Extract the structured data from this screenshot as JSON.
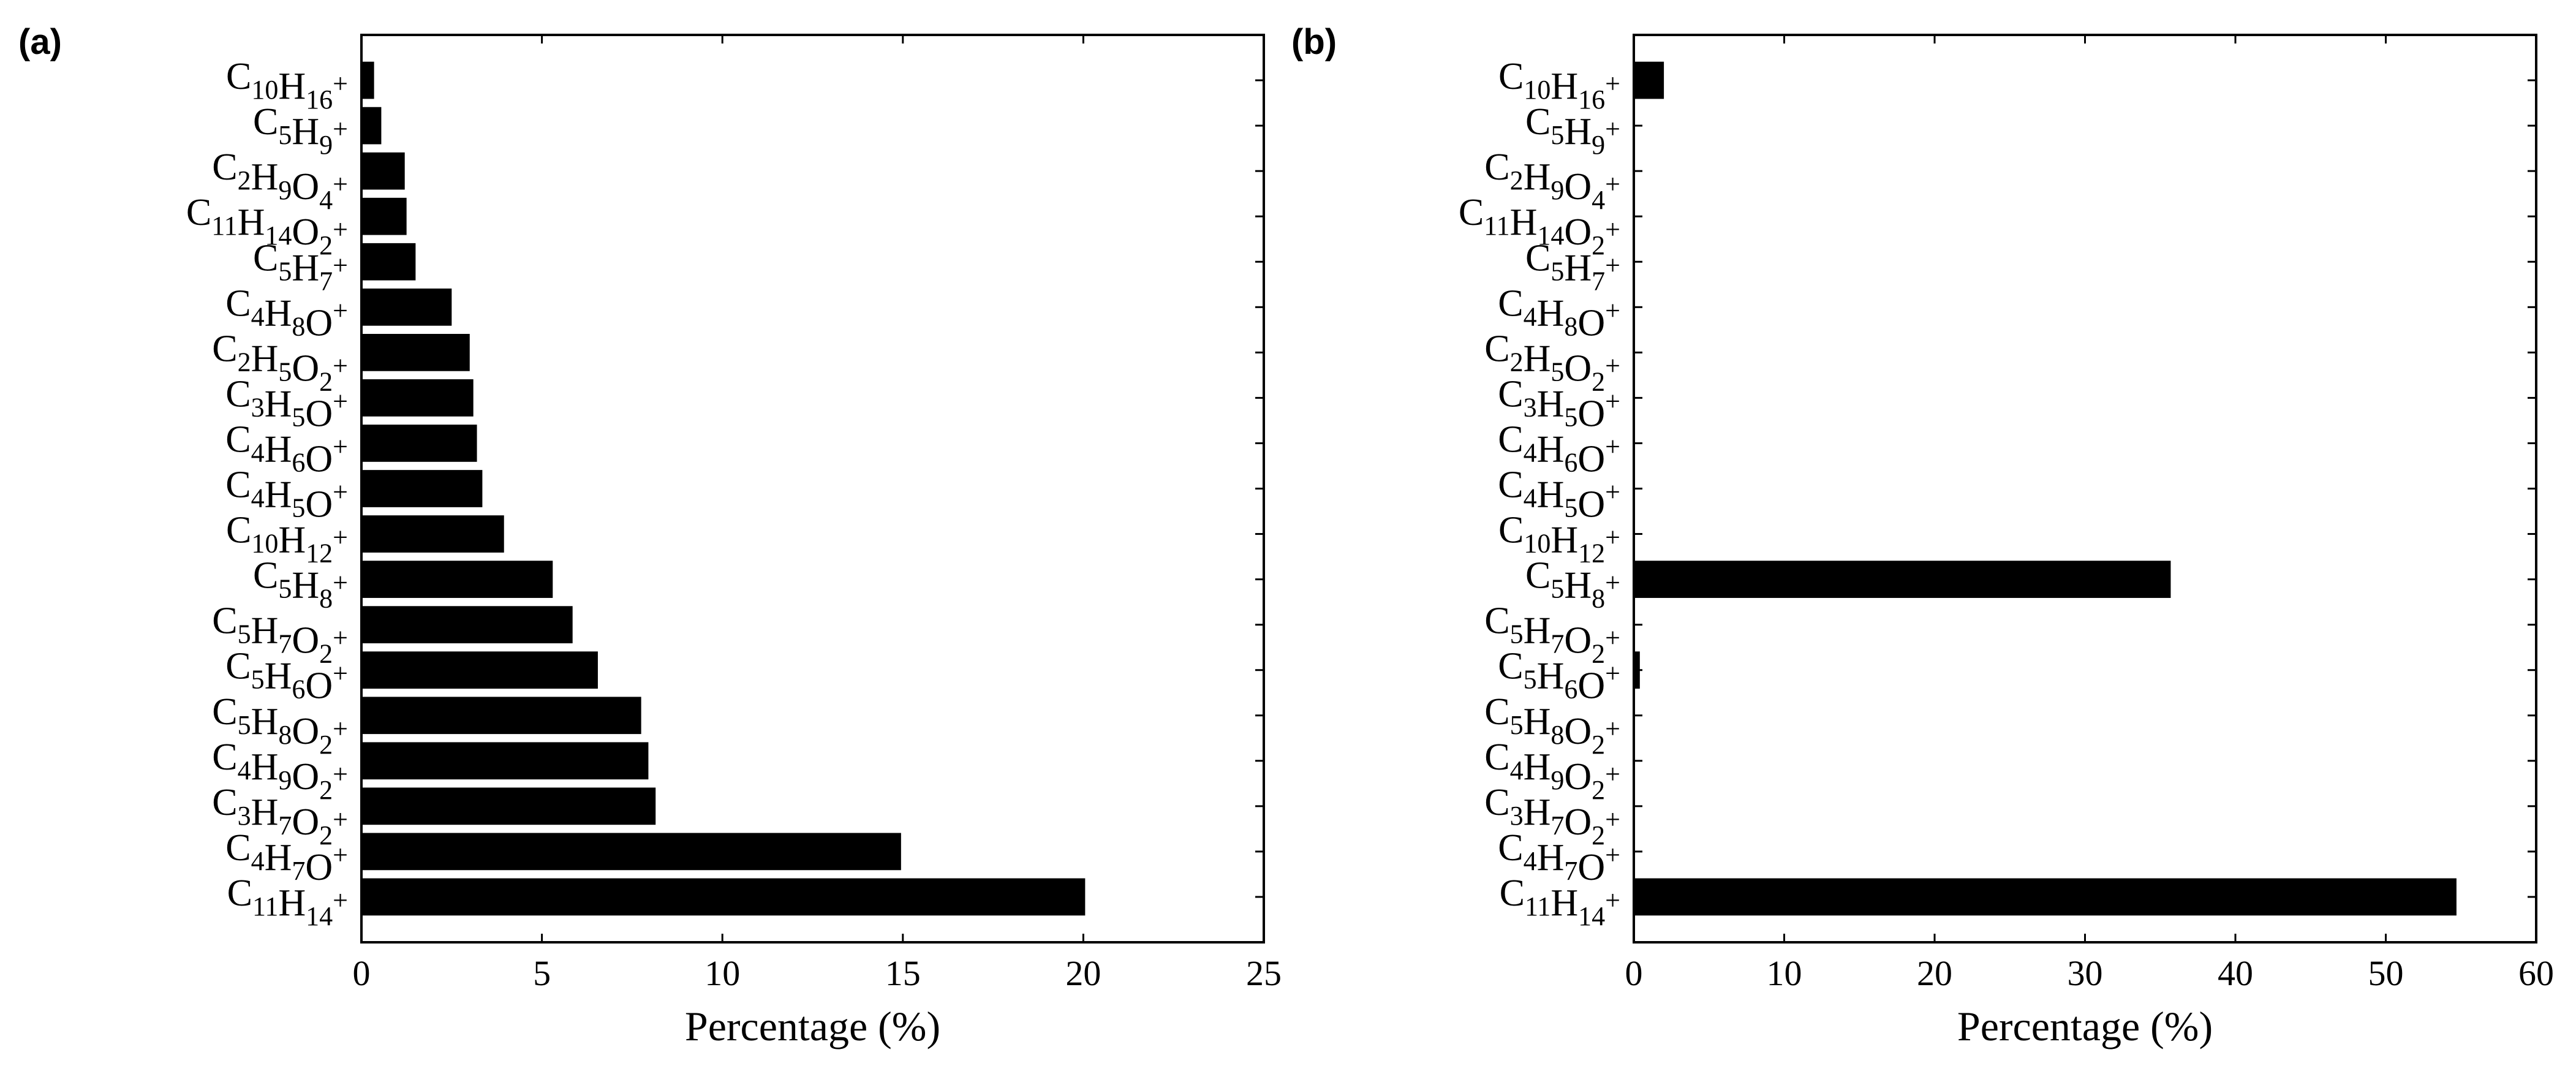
{
  "chart_data": [
    {
      "type": "bar",
      "orientation": "horizontal",
      "panel_label": "(a)",
      "xlabel": "Percentage (%)",
      "xlim": [
        0,
        25
      ],
      "xticks": [
        0,
        5,
        10,
        15,
        20,
        25
      ],
      "bar_color": "#000000",
      "categories": [
        {
          "base": "C",
          "parts": [
            {
              "t": "C",
              "s": "10"
            },
            {
              "t": "H",
              "s": "16"
            }
          ]
        },
        {
          "parts": [
            {
              "t": "C",
              "s": "5"
            },
            {
              "t": "H",
              "s": "9"
            }
          ]
        },
        {
          "parts": [
            {
              "t": "C",
              "s": "2"
            },
            {
              "t": "H",
              "s": "9"
            },
            {
              "t": "O",
              "s": "4"
            }
          ]
        },
        {
          "parts": [
            {
              "t": "C",
              "s": "11"
            },
            {
              "t": "H",
              "s": "14"
            },
            {
              "t": "O",
              "s": "2"
            }
          ]
        },
        {
          "parts": [
            {
              "t": "C",
              "s": "5"
            },
            {
              "t": "H",
              "s": "7"
            }
          ]
        },
        {
          "parts": [
            {
              "t": "C",
              "s": "4"
            },
            {
              "t": "H",
              "s": "8"
            },
            {
              "t": "O",
              "s": ""
            }
          ]
        },
        {
          "parts": [
            {
              "t": "C",
              "s": "2"
            },
            {
              "t": "H",
              "s": "5"
            },
            {
              "t": "O",
              "s": "2"
            }
          ]
        },
        {
          "parts": [
            {
              "t": "C",
              "s": "3"
            },
            {
              "t": "H",
              "s": "5"
            },
            {
              "t": "O",
              "s": ""
            }
          ]
        },
        {
          "parts": [
            {
              "t": "C",
              "s": "4"
            },
            {
              "t": "H",
              "s": "6"
            },
            {
              "t": "O",
              "s": ""
            }
          ]
        },
        {
          "parts": [
            {
              "t": "C",
              "s": "4"
            },
            {
              "t": "H",
              "s": "5"
            },
            {
              "t": "O",
              "s": ""
            }
          ]
        },
        {
          "parts": [
            {
              "t": "C",
              "s": "10"
            },
            {
              "t": "H",
              "s": "12"
            }
          ]
        },
        {
          "parts": [
            {
              "t": "C",
              "s": "5"
            },
            {
              "t": "H",
              "s": "8"
            }
          ]
        },
        {
          "parts": [
            {
              "t": "C",
              "s": "5"
            },
            {
              "t": "H",
              "s": "7"
            },
            {
              "t": "O",
              "s": "2"
            }
          ]
        },
        {
          "parts": [
            {
              "t": "C",
              "s": "5"
            },
            {
              "t": "H",
              "s": "6"
            },
            {
              "t": "O",
              "s": ""
            }
          ]
        },
        {
          "parts": [
            {
              "t": "C",
              "s": "5"
            },
            {
              "t": "H",
              "s": "8"
            },
            {
              "t": "O",
              "s": "2"
            }
          ]
        },
        {
          "parts": [
            {
              "t": "C",
              "s": "4"
            },
            {
              "t": "H",
              "s": "9"
            },
            {
              "t": "O",
              "s": "2"
            }
          ]
        },
        {
          "parts": [
            {
              "t": "C",
              "s": "3"
            },
            {
              "t": "H",
              "s": "7"
            },
            {
              "t": "O",
              "s": "2"
            }
          ]
        },
        {
          "parts": [
            {
              "t": "C",
              "s": "4"
            },
            {
              "t": "H",
              "s": "7"
            },
            {
              "t": "O",
              "s": ""
            }
          ]
        },
        {
          "parts": [
            {
              "t": "C",
              "s": "11"
            },
            {
              "t": "H",
              "s": "14"
            }
          ]
        }
      ],
      "values": [
        0.35,
        0.55,
        1.2,
        1.25,
        1.5,
        2.5,
        3.0,
        3.1,
        3.2,
        3.35,
        3.95,
        5.3,
        5.85,
        6.55,
        7.75,
        7.95,
        8.15,
        14.95,
        20.05
      ]
    },
    {
      "type": "bar",
      "orientation": "horizontal",
      "panel_label": "(b)",
      "xlabel": "Percentage (%)",
      "xlim": [
        0,
        60
      ],
      "xticks": [
        0,
        10,
        20,
        30,
        40,
        50,
        60
      ],
      "bar_color": "#000000",
      "categories": "same_as_panel_a",
      "values": [
        2.0,
        0,
        0,
        0,
        0,
        0,
        0,
        0,
        0,
        0,
        0,
        35.7,
        0,
        0.4,
        0,
        0,
        0,
        0,
        54.7
      ]
    }
  ]
}
